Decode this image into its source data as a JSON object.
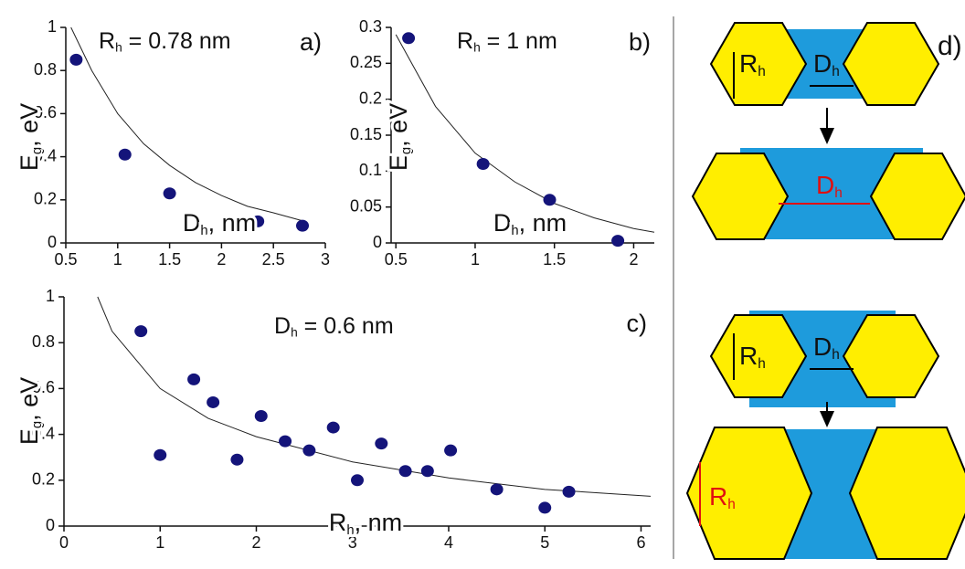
{
  "chart_data": [
    {
      "type": "scatter",
      "panel_label": "a)",
      "annotation": [
        "R",
        "h",
        " = 0.78 nm"
      ],
      "x_label": [
        "D",
        "h",
        ", nm"
      ],
      "y_label": [
        "E",
        "g",
        ", eV"
      ],
      "xlim": [
        0.5,
        3
      ],
      "ylim": [
        0,
        1
      ],
      "xticks": [
        0.5,
        1,
        1.5,
        2,
        2.5,
        3
      ],
      "yticks": [
        0,
        0.2,
        0.4,
        0.6,
        0.8,
        1
      ],
      "series": [
        {
          "color": "#14147a",
          "x": [
            0.6,
            1.07,
            1.5,
            2.35,
            2.78
          ],
          "values": [
            0.85,
            0.41,
            0.23,
            0.1,
            0.08
          ]
        }
      ],
      "fit": {
        "color": "#222222",
        "x": [
          0.55,
          0.75,
          1,
          1.25,
          1.5,
          1.75,
          2,
          2.25,
          2.5,
          2.8
        ],
        "values": [
          1.0,
          0.8,
          0.6,
          0.46,
          0.36,
          0.28,
          0.22,
          0.17,
          0.14,
          0.1
        ]
      }
    },
    {
      "type": "scatter",
      "panel_label": "b)",
      "annotation": [
        "R",
        "h",
        " = 1 nm"
      ],
      "x_label": [
        "D",
        "h",
        ", nm"
      ],
      "y_label": [
        "E",
        "g",
        ", eV"
      ],
      "xlim": [
        0.47,
        2.13
      ],
      "ylim": [
        0,
        0.3
      ],
      "xticks": [
        0.5,
        1,
        1.5,
        2
      ],
      "yticks": [
        0,
        0.05,
        0.1,
        0.15,
        0.2,
        0.25,
        0.3
      ],
      "series": [
        {
          "color": "#14147a",
          "x": [
            0.58,
            1.05,
            1.47,
            1.9
          ],
          "values": [
            0.285,
            0.11,
            0.06,
            0.003
          ]
        }
      ],
      "fit": {
        "color": "#222222",
        "x": [
          0.5,
          0.75,
          1,
          1.25,
          1.5,
          1.75,
          2,
          2.13
        ],
        "values": [
          0.29,
          0.19,
          0.125,
          0.085,
          0.055,
          0.035,
          0.02,
          0.015
        ]
      }
    },
    {
      "type": "scatter",
      "panel_label": "c)",
      "annotation": [
        "D",
        "h",
        " = 0.6 nm"
      ],
      "x_label": [
        "R",
        "h",
        ", nm"
      ],
      "y_label": [
        "E",
        "g",
        ", eV"
      ],
      "xlim": [
        0,
        6.1
      ],
      "ylim": [
        0,
        1
      ],
      "xticks": [
        0,
        1,
        2,
        3,
        4,
        5,
        6
      ],
      "yticks": [
        0,
        0.2,
        0.4,
        0.6,
        0.8,
        1
      ],
      "series": [
        {
          "color": "#14147a",
          "x": [
            0.8,
            1,
            1.35,
            1.55,
            1.8,
            2.05,
            2.3,
            2.55,
            2.8,
            3.05,
            3.3,
            3.55,
            3.78,
            4.02,
            4.5,
            5,
            5.25
          ],
          "values": [
            0.85,
            0.31,
            0.64,
            0.54,
            0.29,
            0.48,
            0.37,
            0.33,
            0.43,
            0.2,
            0.36,
            0.24,
            0.24,
            0.33,
            0.16,
            0.08,
            0.15
          ]
        }
      ],
      "fit": {
        "color": "#222222",
        "x": [
          0.35,
          0.5,
          1,
          1.5,
          2,
          3,
          4,
          5,
          6.1
        ],
        "values": [
          1.0,
          0.85,
          0.6,
          0.47,
          0.39,
          0.28,
          0.21,
          0.16,
          0.13
        ]
      }
    }
  ],
  "diagram": {
    "panel_label": "d)",
    "labels": [
      [
        "R",
        "h"
      ],
      [
        "D",
        "h"
      ],
      [
        "D",
        "h"
      ],
      [
        "R",
        "h"
      ],
      [
        "D",
        "h"
      ],
      [
        "R",
        "h"
      ]
    ]
  }
}
